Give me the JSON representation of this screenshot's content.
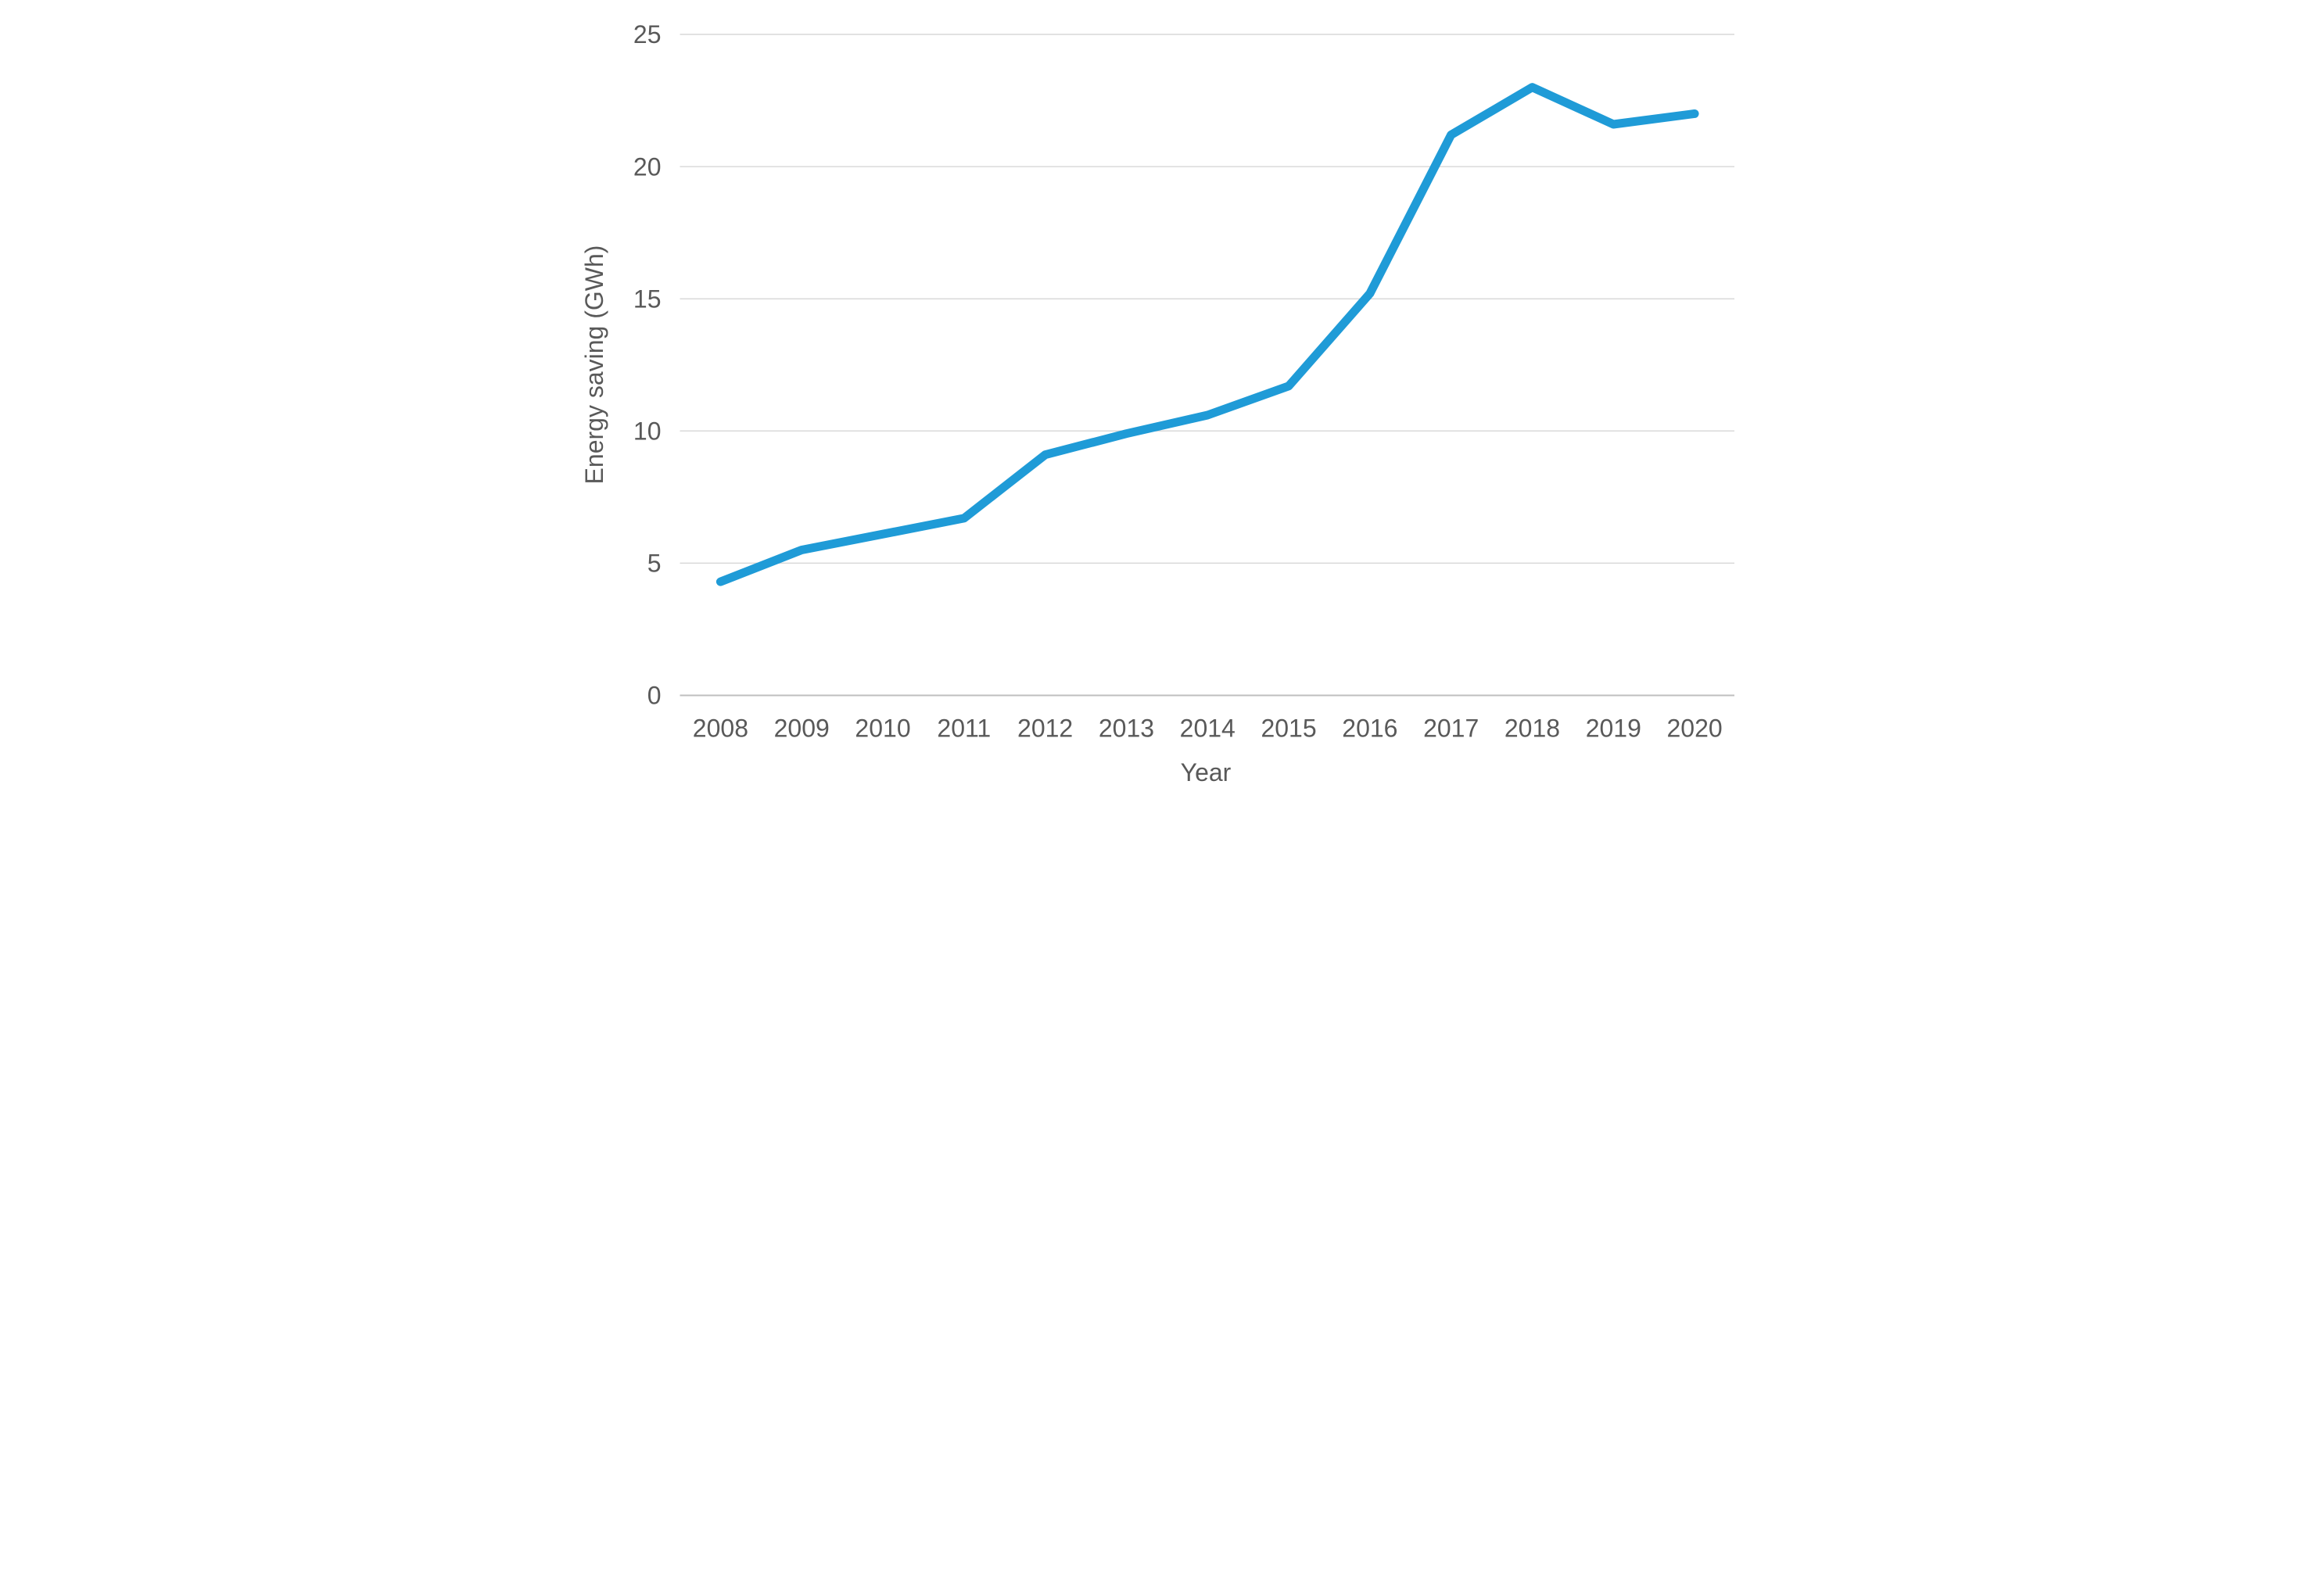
{
  "chart_data": {
    "type": "line",
    "title": "",
    "xlabel": "Year",
    "ylabel": "Energy saving (GWh)",
    "categories": [
      "2008",
      "2009",
      "2010",
      "2011",
      "2012",
      "2013",
      "2014",
      "2015",
      "2016",
      "2017",
      "2018",
      "2019",
      "2020"
    ],
    "series": [
      {
        "name": "Energy saving",
        "values": [
          4.3,
          5.5,
          6.1,
          6.7,
          9.1,
          9.9,
          10.6,
          11.7,
          15.2,
          21.2,
          23.0,
          21.6,
          22.0
        ]
      }
    ],
    "ylim": [
      0,
      25
    ],
    "yticks": [
      0,
      5,
      10,
      15,
      20,
      25
    ],
    "grid": "horizontal-only",
    "legend": "none",
    "line_color": "#1f9bd7",
    "line_width": 22,
    "gridline_color": "#d9d9d9",
    "axisline_color": "#bfbfbf",
    "text_color": "#595959",
    "background_color": "#ffffff"
  }
}
